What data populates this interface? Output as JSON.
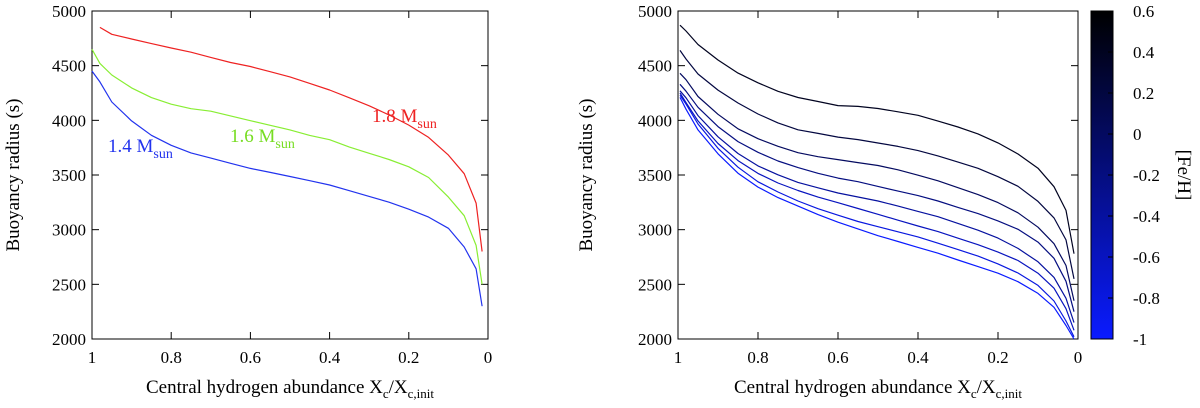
{
  "chart_data": [
    {
      "type": "line",
      "xlabel_main": "Central hydrogen abundance X",
      "xlabel_sub1": "c",
      "xlabel_mid": "/X",
      "xlabel_sub2": "c,init",
      "ylabel": "Buoyancy radius (s)",
      "xlim": [
        1,
        0
      ],
      "ylim": [
        2000,
        5000
      ],
      "xticks": [
        1,
        0.8,
        0.6,
        0.4,
        0.2,
        0
      ],
      "xtick_labels": [
        "1",
        "0.8",
        "0.6",
        "0.4",
        "0.2",
        "0"
      ],
      "yticks": [
        2000,
        2500,
        3000,
        3500,
        4000,
        4500,
        5000
      ],
      "ytick_labels": [
        "2000",
        "2500",
        "3000",
        "3500",
        "4000",
        "4500",
        "5000"
      ],
      "x": [
        0.98,
        0.95,
        0.9,
        0.85,
        0.8,
        0.75,
        0.7,
        0.65,
        0.6,
        0.55,
        0.5,
        0.45,
        0.4,
        0.35,
        0.3,
        0.25,
        0.2,
        0.15,
        0.1,
        0.06,
        0.03,
        0.015
      ],
      "series": [
        {
          "name": "1.8 M_sun",
          "label_main": "1.8 M",
          "label_sub": "sun",
          "color": "#ee2222",
          "x": [
            0.98,
            0.95,
            0.9,
            0.85,
            0.8,
            0.75,
            0.7,
            0.65,
            0.6,
            0.55,
            0.5,
            0.45,
            0.4,
            0.35,
            0.3,
            0.25,
            0.2,
            0.15,
            0.1,
            0.06,
            0.03,
            0.015
          ],
          "values": [
            4850,
            4790,
            4750,
            4710,
            4670,
            4630,
            4580,
            4530,
            4490,
            4440,
            4390,
            4330,
            4270,
            4200,
            4130,
            4050,
            3960,
            3850,
            3690,
            3520,
            3250,
            2800
          ]
        },
        {
          "name": "1.6 M_sun",
          "label_main": "1.6 M",
          "label_sub": "sun",
          "color": "#88ee33",
          "x": [
            1.0,
            0.98,
            0.95,
            0.9,
            0.85,
            0.8,
            0.75,
            0.7,
            0.65,
            0.6,
            0.55,
            0.5,
            0.45,
            0.4,
            0.35,
            0.3,
            0.25,
            0.2,
            0.15,
            0.1,
            0.06,
            0.03,
            0.015
          ],
          "values": [
            4650,
            4520,
            4410,
            4290,
            4200,
            4140,
            4100,
            4080,
            4040,
            4000,
            3960,
            3920,
            3870,
            3830,
            3760,
            3700,
            3640,
            3570,
            3470,
            3290,
            3120,
            2850,
            2500
          ]
        },
        {
          "name": "1.4 M_sun",
          "label_main": "1.4 M",
          "label_sub": "sun",
          "color": "#2233ee",
          "x": [
            1.0,
            0.98,
            0.95,
            0.9,
            0.85,
            0.8,
            0.75,
            0.7,
            0.65,
            0.6,
            0.55,
            0.5,
            0.45,
            0.4,
            0.35,
            0.3,
            0.25,
            0.2,
            0.15,
            0.1,
            0.06,
            0.03,
            0.015
          ],
          "values": [
            4450,
            4350,
            4170,
            4000,
            3870,
            3780,
            3710,
            3660,
            3610,
            3560,
            3520,
            3480,
            3440,
            3400,
            3350,
            3300,
            3250,
            3190,
            3120,
            3020,
            2850,
            2650,
            2300
          ]
        }
      ]
    },
    {
      "type": "line",
      "xlabel_main": "Central hydrogen abundance X",
      "xlabel_sub1": "c",
      "xlabel_mid": "/X",
      "xlabel_sub2": "c,init",
      "ylabel": "Buoyancy radius (s)",
      "xlim": [
        1,
        0
      ],
      "ylim": [
        2000,
        5000
      ],
      "xticks": [
        1,
        0.8,
        0.6,
        0.4,
        0.2,
        0
      ],
      "xtick_labels": [
        "1",
        "0.8",
        "0.6",
        "0.4",
        "0.2",
        "0"
      ],
      "yticks": [
        2000,
        2500,
        3000,
        3500,
        4000,
        4500,
        5000
      ],
      "ytick_labels": [
        "2000",
        "2500",
        "3000",
        "3500",
        "4000",
        "4500",
        "5000"
      ],
      "colorbar": {
        "label": "[Fe/H]",
        "min": -1,
        "max": 0.6,
        "ticks": [
          0.6,
          0.4,
          0.2,
          0,
          -0.2,
          -0.4,
          -0.6,
          -0.8,
          -1
        ],
        "tick_labels": [
          "0.6",
          "0.4",
          "0.2",
          "0",
          "-0.2",
          "-0.4",
          "-0.6",
          "-0.8",
          "-1"
        ],
        "color_low": "#0a1bff",
        "color_high": "#000000"
      },
      "x": [
        0.995,
        0.98,
        0.95,
        0.9,
        0.85,
        0.8,
        0.75,
        0.7,
        0.65,
        0.6,
        0.55,
        0.5,
        0.45,
        0.4,
        0.35,
        0.3,
        0.25,
        0.2,
        0.15,
        0.1,
        0.06,
        0.03,
        0.01
      ],
      "series": [
        {
          "name": "[Fe/H] = 0.4",
          "feh": 0.4,
          "values": [
            4870,
            4820,
            4700,
            4560,
            4440,
            4350,
            4270,
            4210,
            4170,
            4130,
            4120,
            4100,
            4070,
            4040,
            3990,
            3940,
            3880,
            3800,
            3700,
            3570,
            3400,
            3180,
            2780
          ]
        },
        {
          "name": "[Fe/H] = 0.2",
          "feh": 0.2,
          "values": [
            4640,
            4560,
            4420,
            4270,
            4150,
            4050,
            3970,
            3910,
            3880,
            3850,
            3830,
            3800,
            3770,
            3730,
            3680,
            3620,
            3560,
            3480,
            3390,
            3250,
            3100,
            2900,
            2550
          ]
        },
        {
          "name": "[Fe/H] = 0.0",
          "feh": 0.0,
          "values": [
            4430,
            4370,
            4220,
            4060,
            3930,
            3840,
            3770,
            3710,
            3670,
            3640,
            3610,
            3580,
            3540,
            3490,
            3440,
            3380,
            3320,
            3250,
            3160,
            3030,
            2880,
            2680,
            2350
          ]
        },
        {
          "name": "[Fe/H] = -0.2",
          "feh": -0.2,
          "values": [
            4330,
            4270,
            4120,
            3940,
            3800,
            3700,
            3620,
            3560,
            3510,
            3470,
            3440,
            3400,
            3360,
            3320,
            3270,
            3210,
            3150,
            3080,
            3000,
            2880,
            2730,
            2520,
            2250
          ]
        },
        {
          "name": "[Fe/H] = -0.4",
          "feh": -0.4,
          "values": [
            4270,
            4200,
            4040,
            3850,
            3700,
            3590,
            3510,
            3440,
            3390,
            3340,
            3300,
            3260,
            3210,
            3160,
            3110,
            3050,
            2990,
            2920,
            2830,
            2710,
            2570,
            2380,
            2150
          ]
        },
        {
          "name": "[Fe/H] = -0.6",
          "feh": -0.6,
          "values": [
            4250,
            4170,
            4000,
            3790,
            3630,
            3510,
            3420,
            3350,
            3290,
            3240,
            3190,
            3140,
            3090,
            3040,
            2990,
            2930,
            2870,
            2800,
            2720,
            2600,
            2460,
            2270,
            2080
          ]
        },
        {
          "name": "[Fe/H] = -0.8",
          "feh": -0.8,
          "values": [
            4230,
            4140,
            3960,
            3740,
            3570,
            3440,
            3350,
            3270,
            3200,
            3140,
            3080,
            3030,
            2980,
            2930,
            2870,
            2810,
            2750,
            2680,
            2600,
            2490,
            2350,
            2170,
            2020
          ]
        },
        {
          "name": "[Fe/H] = -1.0",
          "feh": -1.0,
          "values": [
            4210,
            4110,
            3920,
            3700,
            3520,
            3390,
            3290,
            3210,
            3130,
            3060,
            3000,
            2940,
            2890,
            2840,
            2790,
            2730,
            2670,
            2610,
            2530,
            2420,
            2290,
            2120,
            2000
          ]
        }
      ]
    }
  ]
}
